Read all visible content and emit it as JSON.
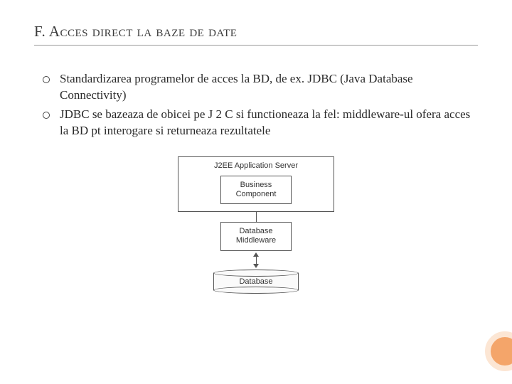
{
  "title": "F. Acces direct la baze de date",
  "bullets": [
    "Standardizarea programelor de acces la BD, de ex. JDBC (Java Database Connectivity)",
    "JDBC se bazeaza de obicei pe J 2 C si functioneaza la fel: middleware-ul ofera acces la BD pt interogare si returneaza rezultatele"
  ],
  "diagram": {
    "server_label": "J2EE Application Server",
    "business_label": "Business Component",
    "middleware_label": "Database Middleware",
    "database_label": "Database",
    "box_border": "#555555",
    "text_color": "#333333",
    "font_family": "Arial, sans-serif",
    "font_size_pt": 8
  },
  "decor": {
    "fill": "#f4a56a",
    "ring": "#fce6d4"
  },
  "colors": {
    "background": "#ffffff",
    "title_rule": "#999999",
    "body_text": "#2a2a2a"
  }
}
